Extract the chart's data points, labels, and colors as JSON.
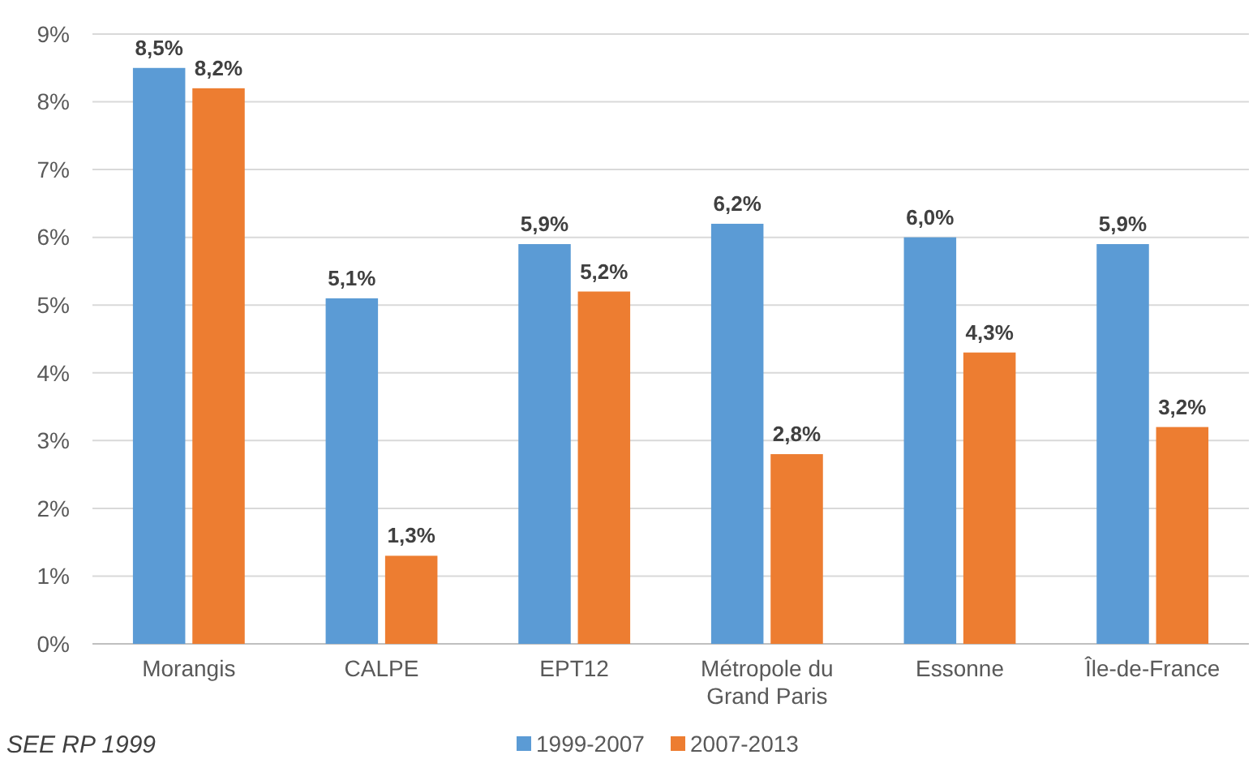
{
  "chart_data": {
    "type": "bar",
    "categories": [
      "Morangis",
      "CALPE",
      "EPT12",
      "Métropole du Grand Paris",
      "Essonne",
      "Île-de-France"
    ],
    "series": [
      {
        "name": "1999-2007",
        "color": "#5b9bd5",
        "values": [
          8.5,
          5.1,
          5.9,
          6.2,
          6.0,
          5.9
        ],
        "value_labels": [
          "8,5%",
          "5,1%",
          "5,9%",
          "6,2%",
          "6,0%",
          "5,9%"
        ]
      },
      {
        "name": "2007-2013",
        "color": "#ed7d31",
        "values": [
          8.2,
          1.3,
          5.2,
          2.8,
          4.3,
          3.2
        ],
        "value_labels": [
          "8,2%",
          "1,3%",
          "5,2%",
          "2,8%",
          "4,3%",
          "3,2%"
        ]
      }
    ],
    "ylim": [
      0,
      9
    ],
    "yticks": [
      {
        "value": 0,
        "label": "0%"
      },
      {
        "value": 1,
        "label": "1%"
      },
      {
        "value": 2,
        "label": "2%"
      },
      {
        "value": 3,
        "label": "3%"
      },
      {
        "value": 4,
        "label": "4%"
      },
      {
        "value": 5,
        "label": "5%"
      },
      {
        "value": 6,
        "label": "6%"
      },
      {
        "value": 7,
        "label": "7%"
      },
      {
        "value": 8,
        "label": "8%"
      },
      {
        "value": 9,
        "label": "9%"
      }
    ],
    "grid": "y",
    "legend": "bottom",
    "annotations": [
      "SEE RP 1999"
    ]
  }
}
